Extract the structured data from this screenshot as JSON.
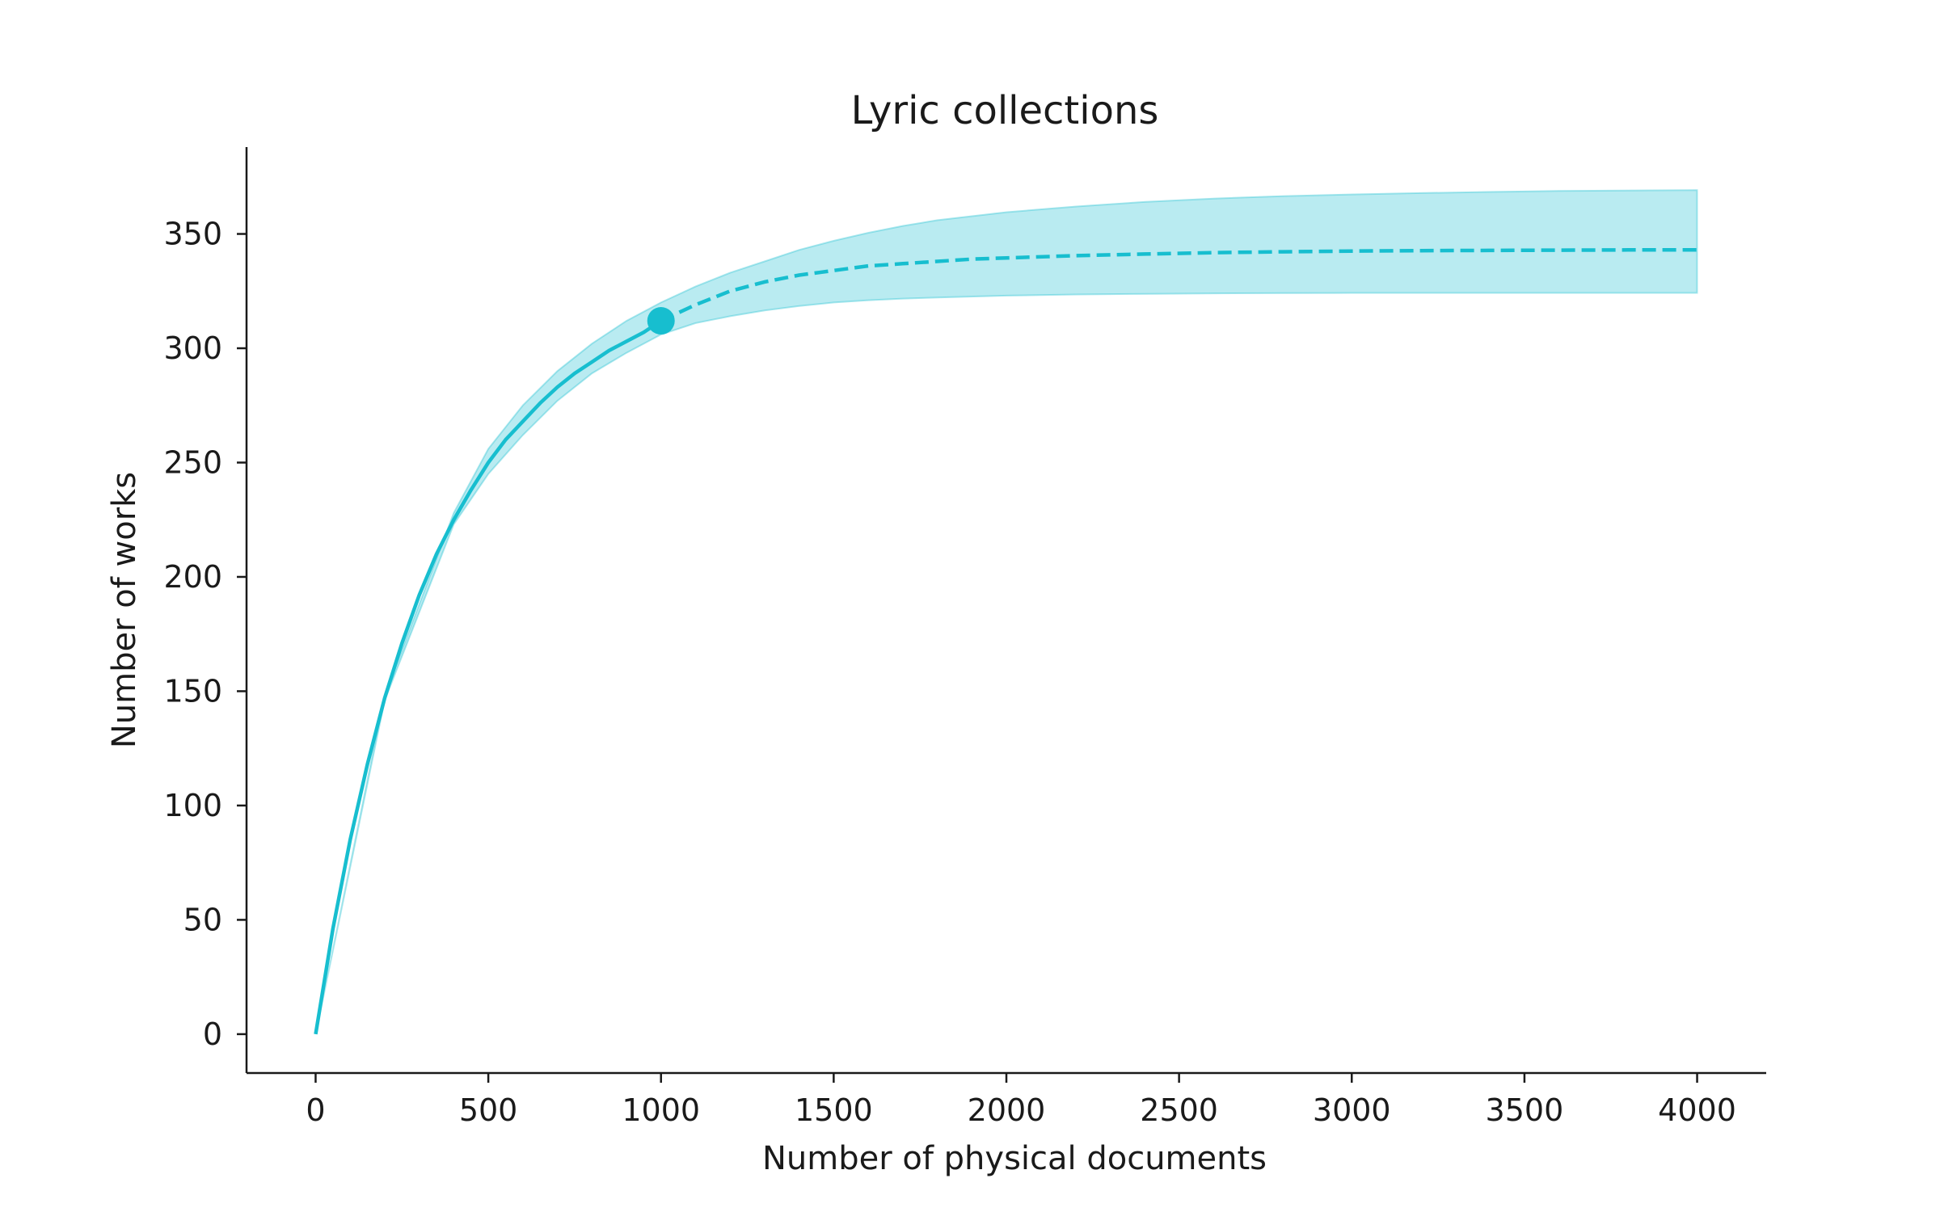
{
  "chart_data": {
    "type": "line",
    "title": "Lyric collections",
    "xlabel": "Number of physical documents",
    "ylabel": "Number of works",
    "xlim": [
      -200,
      4200
    ],
    "ylim": [
      -17,
      388
    ],
    "xticks": [
      0,
      500,
      1000,
      1500,
      2000,
      2500,
      3000,
      3500,
      4000
    ],
    "yticks": [
      0,
      50,
      100,
      150,
      200,
      250,
      300,
      350
    ],
    "grid": false,
    "legend": "none",
    "color": "#17becf",
    "observed": {
      "style": "solid",
      "x": [
        0,
        50,
        100,
        150,
        200,
        250,
        300,
        350,
        400,
        450,
        500,
        550,
        600,
        650,
        700,
        750,
        800,
        850,
        900,
        950,
        1000
      ],
      "y": [
        0,
        46,
        85,
        118,
        147,
        171,
        192,
        210,
        225,
        238,
        250,
        260,
        268,
        276,
        283,
        289,
        294,
        299,
        303,
        307,
        312
      ]
    },
    "extrapolated": {
      "style": "dashed",
      "x": [
        1000,
        1100,
        1200,
        1300,
        1400,
        1500,
        1600,
        1700,
        1800,
        1900,
        2000,
        2200,
        2400,
        2600,
        2800,
        3000,
        3200,
        3400,
        3600,
        3800,
        4000
      ],
      "y": [
        312,
        319,
        325,
        329,
        332,
        334,
        336,
        337,
        338,
        339,
        339.5,
        340.5,
        341.2,
        341.8,
        342.2,
        342.5,
        342.7,
        342.8,
        342.9,
        343,
        343
      ]
    },
    "confidence_band": {
      "x": [
        0,
        200,
        400,
        500,
        600,
        700,
        800,
        900,
        1000,
        1100,
        1200,
        1300,
        1400,
        1500,
        1600,
        1700,
        1800,
        2000,
        2200,
        2400,
        2600,
        2800,
        3000,
        3200,
        3400,
        3600,
        3800,
        4000
      ],
      "lower": [
        0,
        146,
        223,
        245,
        262,
        277,
        289,
        298,
        306,
        311,
        314,
        316.5,
        318.5,
        320,
        321,
        321.7,
        322.2,
        323,
        323.5,
        323.8,
        324,
        324.1,
        324.2,
        324.2,
        324.2,
        324.2,
        324.2,
        324.2
      ],
      "upper": [
        0,
        148,
        228,
        256,
        275,
        290,
        302,
        312,
        320,
        327,
        333,
        338,
        343,
        347,
        350.5,
        353.5,
        356,
        359.5,
        362,
        364,
        365.5,
        366.5,
        367.3,
        367.9,
        368.4,
        368.8,
        369,
        369.2
      ]
    },
    "marker": {
      "x": 1000,
      "y": 312
    }
  }
}
